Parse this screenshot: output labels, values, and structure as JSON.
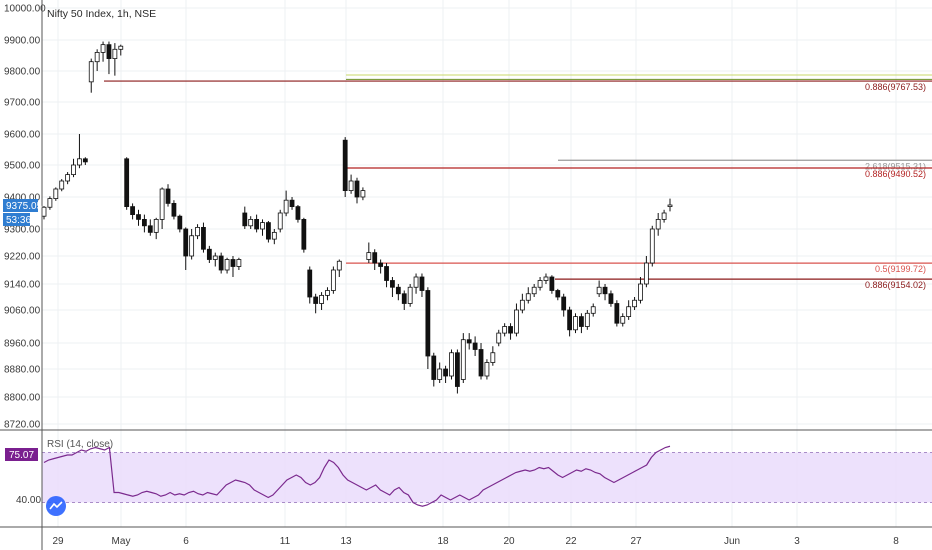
{
  "header": {
    "title": "Nifty 50 Index, 1h, NSE"
  },
  "price_badge": {
    "value": "9375.05",
    "countdown": "53:36"
  },
  "rsi_panel": {
    "title": "RSI (14, close)",
    "value": "75.07",
    "axis_label": "40.00",
    "band_color": "#e8d9fb",
    "line_color": "#7b2a8e"
  },
  "colors": {
    "up": "#ffffff",
    "down": "#111111",
    "wick": "#111111",
    "badge": "#2f7dd1",
    "rsi_badge": "#7a1f8f"
  },
  "chart_data": [
    {
      "type": "candlestick",
      "title": "Nifty 50 Index, 1h, NSE",
      "y_ticks": [
        "10000.00",
        "9900.00",
        "9800.00",
        "9700.00",
        "9600.00",
        "9500.00",
        "9400.00",
        "9300.00",
        "9220.00",
        "9140.00",
        "9060.00",
        "8960.00",
        "8880.00",
        "8800.00",
        "8720.00"
      ],
      "x_ticks": [
        "29",
        "May",
        "6",
        "11",
        "13",
        "18",
        "20",
        "22",
        "27",
        "Jun",
        "3",
        "8"
      ],
      "ylim": [
        8720,
        10000
      ],
      "fib_levels": [
        {
          "label": "0.886(9767.53)",
          "value": 9767.53,
          "color": "#8b1a1a"
        },
        {
          "label": "2.618(9515.31)",
          "value": 9515.31,
          "color": "#9a9a9a"
        },
        {
          "label": "0.886(9490.52)",
          "value": 9490.52,
          "color": "#b22222"
        },
        {
          "label": "0.5(9199.72)",
          "value": 9199.72,
          "color": "#d9534f"
        },
        {
          "label": "0.886(9154.02)",
          "value": 9154.02,
          "color": "#8b1a1a"
        }
      ],
      "extra_lines": [
        {
          "value": 9787,
          "color": "#c8d96a"
        },
        {
          "value": 9773,
          "color": "#6b8e23"
        }
      ],
      "candles": [
        [
          9340,
          9368,
          9330,
          9372
        ],
        [
          9368,
          9395,
          9360,
          9402
        ],
        [
          9395,
          9425,
          9388,
          9430
        ],
        [
          9425,
          9450,
          9418,
          9456
        ],
        [
          9450,
          9470,
          9440,
          9478
        ],
        [
          9470,
          9500,
          9462,
          9520
        ],
        [
          9500,
          9520,
          9490,
          9600
        ],
        [
          9520,
          9510,
          9500,
          9525
        ],
        [
          9765,
          9830,
          9730,
          9840
        ],
        [
          9830,
          9860,
          9800,
          9870
        ],
        [
          9860,
          9885,
          9830,
          9895
        ],
        [
          9885,
          9840,
          9790,
          9895
        ],
        [
          9840,
          9870,
          9785,
          9890
        ],
        [
          9870,
          9880,
          9850,
          9885
        ],
        [
          9520,
          9370,
          9360,
          9525
        ],
        [
          9370,
          9345,
          9330,
          9380
        ],
        [
          9345,
          9330,
          9310,
          9360
        ],
        [
          9330,
          9310,
          9290,
          9345
        ],
        [
          9310,
          9290,
          9280,
          9330
        ],
        [
          9290,
          9330,
          9270,
          9335
        ],
        [
          9330,
          9425,
          9300,
          9430
        ],
        [
          9425,
          9380,
          9370,
          9440
        ],
        [
          9380,
          9340,
          9330,
          9390
        ],
        [
          9340,
          9300,
          9290,
          9345
        ],
        [
          9300,
          9220,
          9180,
          9305
        ],
        [
          9220,
          9280,
          9210,
          9300
        ],
        [
          9280,
          9305,
          9270,
          9315
        ],
        [
          9305,
          9240,
          9230,
          9320
        ],
        [
          9240,
          9210,
          9200,
          9250
        ],
        [
          9210,
          9220,
          9190,
          9230
        ],
        [
          9220,
          9180,
          9170,
          9230
        ],
        [
          9180,
          9210,
          9170,
          9215
        ],
        [
          9210,
          9190,
          9160,
          9220
        ],
        [
          9190,
          9210,
          9180,
          9215
        ],
        [
          9350,
          9310,
          9300,
          9370
        ],
        [
          9310,
          9330,
          9300,
          9340
        ],
        [
          9330,
          9300,
          9290,
          9345
        ],
        [
          9300,
          9320,
          9280,
          9330
        ],
        [
          9320,
          9270,
          9260,
          9325
        ],
        [
          9270,
          9290,
          9255,
          9300
        ],
        [
          9300,
          9350,
          9290,
          9360
        ],
        [
          9350,
          9390,
          9340,
          9420
        ],
        [
          9390,
          9370,
          9360,
          9400
        ],
        [
          9370,
          9330,
          9320,
          9375
        ],
        [
          9330,
          9240,
          9230,
          9335
        ],
        [
          9180,
          9100,
          9080,
          9190
        ],
        [
          9100,
          9080,
          9050,
          9110
        ],
        [
          9080,
          9105,
          9060,
          9115
        ],
        [
          9105,
          9120,
          9090,
          9130
        ],
        [
          9120,
          9180,
          9110,
          9190
        ],
        [
          9180,
          9205,
          9160,
          9210
        ],
        [
          9580,
          9420,
          9400,
          9590
        ],
        [
          9420,
          9450,
          9410,
          9470
        ],
        [
          9450,
          9400,
          9380,
          9460
        ],
        [
          9400,
          9420,
          9390,
          9430
        ],
        [
          9210,
          9230,
          9200,
          9260
        ],
        [
          9230,
          9200,
          9180,
          9240
        ],
        [
          9200,
          9190,
          9170,
          9210
        ],
        [
          9190,
          9150,
          9130,
          9200
        ],
        [
          9150,
          9130,
          9100,
          9160
        ],
        [
          9130,
          9110,
          9090,
          9140
        ],
        [
          9110,
          9080,
          9060,
          9120
        ],
        [
          9080,
          9130,
          9070,
          9140
        ],
        [
          9130,
          9160,
          9110,
          9170
        ],
        [
          9160,
          9120,
          9100,
          9170
        ],
        [
          9120,
          8920,
          8880,
          9130
        ],
        [
          8920,
          8850,
          8830,
          8930
        ],
        [
          8850,
          8880,
          8840,
          8900
        ],
        [
          8880,
          8860,
          8840,
          8890
        ],
        [
          8860,
          8930,
          8850,
          8940
        ],
        [
          8930,
          8830,
          8810,
          8940
        ],
        [
          8850,
          8970,
          8840,
          8990
        ],
        [
          8970,
          8960,
          8940,
          8990
        ],
        [
          8960,
          8940,
          8920,
          8980
        ],
        [
          8940,
          8860,
          8850,
          8960
        ],
        [
          8860,
          8900,
          8850,
          8910
        ],
        [
          8900,
          8930,
          8890,
          8950
        ],
        [
          8960,
          8990,
          8950,
          9000
        ],
        [
          8990,
          9010,
          8980,
          9020
        ],
        [
          9010,
          8990,
          8970,
          9020
        ],
        [
          8990,
          9060,
          8980,
          9080
        ],
        [
          9060,
          9090,
          9050,
          9110
        ],
        [
          9090,
          9110,
          9080,
          9130
        ],
        [
          9110,
          9130,
          9100,
          9140
        ],
        [
          9130,
          9150,
          9120,
          9160
        ],
        [
          9150,
          9160,
          9140,
          9170
        ],
        [
          9160,
          9120,
          9110,
          9165
        ],
        [
          9120,
          9100,
          9090,
          9125
        ],
        [
          9100,
          9060,
          9040,
          9110
        ],
        [
          9060,
          9000,
          8980,
          9070
        ],
        [
          9000,
          9040,
          8990,
          9050
        ],
        [
          9040,
          9010,
          8990,
          9050
        ],
        [
          9010,
          9050,
          9000,
          9060
        ],
        [
          9050,
          9070,
          9040,
          9080
        ],
        [
          9110,
          9130,
          9100,
          9150
        ],
        [
          9130,
          9110,
          9090,
          9140
        ],
        [
          9110,
          9080,
          9070,
          9120
        ],
        [
          9080,
          9020,
          9010,
          9090
        ],
        [
          9020,
          9040,
          9010,
          9050
        ],
        [
          9040,
          9070,
          9030,
          9090
        ],
        [
          9070,
          9090,
          9060,
          9100
        ],
        [
          9090,
          9140,
          9080,
          9160
        ],
        [
          9140,
          9200,
          9130,
          9220
        ],
        [
          9200,
          9300,
          9190,
          9310
        ],
        [
          9300,
          9330,
          9280,
          9350
        ],
        [
          9330,
          9350,
          9320,
          9360
        ],
        [
          9370,
          9375,
          9355,
          9395
        ]
      ],
      "rsi": [
        62,
        64,
        65,
        66,
        67,
        68,
        68,
        70,
        72,
        71,
        73,
        74,
        73,
        72,
        74,
        38,
        38,
        37,
        36,
        35,
        36,
        38,
        39,
        38,
        37,
        35,
        36,
        38,
        36,
        37,
        36,
        38,
        39,
        37,
        36,
        38,
        37,
        36,
        40,
        44,
        46,
        48,
        47,
        46,
        44,
        40,
        38,
        36,
        34,
        36,
        40,
        44,
        48,
        50,
        52,
        50,
        46,
        44,
        46,
        50,
        58,
        64,
        62,
        58,
        52,
        48,
        46,
        44,
        42,
        40,
        42,
        44,
        40,
        38,
        36,
        40,
        42,
        38,
        36,
        30,
        28,
        27,
        28,
        30,
        32,
        36,
        34,
        32,
        34,
        36,
        34,
        32,
        34,
        36,
        40,
        42,
        44,
        46,
        48,
        50,
        52,
        54,
        55,
        56,
        55,
        56,
        58,
        57,
        58,
        55,
        52,
        50,
        52,
        54,
        56,
        55,
        57,
        56,
        54,
        53,
        50,
        48,
        46,
        48,
        50,
        52,
        54,
        56,
        58,
        60,
        66,
        70,
        72,
        74,
        75
      ]
    }
  ]
}
